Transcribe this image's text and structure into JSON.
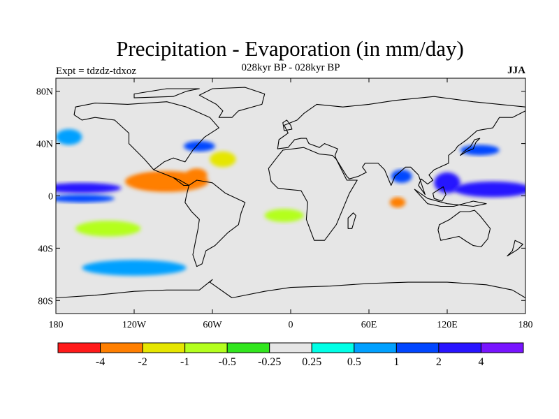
{
  "title": "Precipitation - Evaporation (in mm/day)",
  "subtitle": "028kyr BP - 028kyr BP",
  "expt_label": "Expt = tdzdz-tdxoz",
  "season": "JJA",
  "axes": {
    "lat_ticks": [
      {
        "value": 80,
        "label": "80N"
      },
      {
        "value": 40,
        "label": "40N"
      },
      {
        "value": 0,
        "label": "0"
      },
      {
        "value": -40,
        "label": "40S"
      },
      {
        "value": -80,
        "label": "80S"
      }
    ],
    "lon_ticks": [
      {
        "value": -180,
        "label": "180"
      },
      {
        "value": -120,
        "label": "120W"
      },
      {
        "value": -60,
        "label": "60W"
      },
      {
        "value": 0,
        "label": "0"
      },
      {
        "value": 60,
        "label": "60E"
      },
      {
        "value": 120,
        "label": "120E"
      },
      {
        "value": 180,
        "label": "180"
      }
    ]
  },
  "colorbar": {
    "colors": [
      "#ff1a1a",
      "#ff7f00",
      "#e6e600",
      "#b4ff1e",
      "#32e61e",
      "#e6e6e6",
      "#00ffe6",
      "#00a0ff",
      "#0046ff",
      "#2814ff",
      "#7814ff"
    ],
    "labels": [
      "-4",
      "-2",
      "-1",
      "-0.5",
      "-0.25",
      "0.25",
      "0.5",
      "1",
      "2",
      "4"
    ]
  },
  "chart_data": {
    "type": "heatmap",
    "title": "Precipitation - Evaporation (in mm/day)",
    "subtitle": "028kyr BP - 028kyr BP",
    "season": "JJA",
    "xlim": [
      -180,
      180
    ],
    "ylim": [
      -90,
      90
    ],
    "levels": [
      -4,
      -2,
      -1,
      -0.5,
      -0.25,
      0.25,
      0.5,
      1,
      2,
      4
    ],
    "features": [
      {
        "name": "east-pacific-itcz-dry",
        "lon": -98,
        "lat": 11,
        "rlon": 22,
        "rlat": 5,
        "value": -5
      },
      {
        "name": "east-pacific-itcz-dry-halo",
        "lon": -95,
        "lat": 11,
        "rlon": 32,
        "rlat": 8,
        "value": -2.5
      },
      {
        "name": "central-pacific-wet-band",
        "lon": -160,
        "lat": 6,
        "rlon": 30,
        "rlat": 4,
        "value": 3
      },
      {
        "name": "central-pacific-wet-band-south",
        "lon": -160,
        "lat": -2,
        "rlon": 25,
        "rlat": 3,
        "value": 2
      },
      {
        "name": "caribbean-dry",
        "lon": -72,
        "lat": 16,
        "rlon": 8,
        "rlat": 5,
        "value": -3
      },
      {
        "name": "gulf-stream-wet",
        "lon": -70,
        "lat": 38,
        "rlon": 12,
        "rlat": 4,
        "value": 2
      },
      {
        "name": "north-atlantic-dry",
        "lon": -52,
        "lat": 28,
        "rlon": 10,
        "rlat": 6,
        "value": -1.2
      },
      {
        "name": "indian-ocean-dry",
        "lon": 82,
        "lat": -5,
        "rlon": 6,
        "rlat": 4,
        "value": -2.5
      },
      {
        "name": "bay-of-bengal-wet",
        "lon": 85,
        "lat": 15,
        "rlon": 8,
        "rlat": 5,
        "value": 1.5
      },
      {
        "name": "maritime-continent-wet",
        "lon": 120,
        "lat": 10,
        "rlon": 10,
        "rlat": 8,
        "value": 3
      },
      {
        "name": "west-pacific-wet-band",
        "lon": 155,
        "lat": 5,
        "rlon": 30,
        "rlat": 6,
        "value": 3
      },
      {
        "name": "kuroshio-wet",
        "lon": 145,
        "lat": 35,
        "rlon": 15,
        "rlat": 4,
        "value": 2
      },
      {
        "name": "south-atlantic-dry",
        "lon": -5,
        "lat": -15,
        "rlon": 15,
        "rlat": 5,
        "value": -0.8
      },
      {
        "name": "southern-ocean-wet",
        "lon": -120,
        "lat": -55,
        "rlon": 40,
        "rlat": 6,
        "value": 0.6
      },
      {
        "name": "south-pacific-dry",
        "lon": -140,
        "lat": -25,
        "rlon": 25,
        "rlat": 6,
        "value": -0.6
      },
      {
        "name": "north-pacific-wet",
        "lon": -170,
        "lat": 45,
        "rlon": 10,
        "rlat": 6,
        "value": 0.8
      }
    ]
  }
}
